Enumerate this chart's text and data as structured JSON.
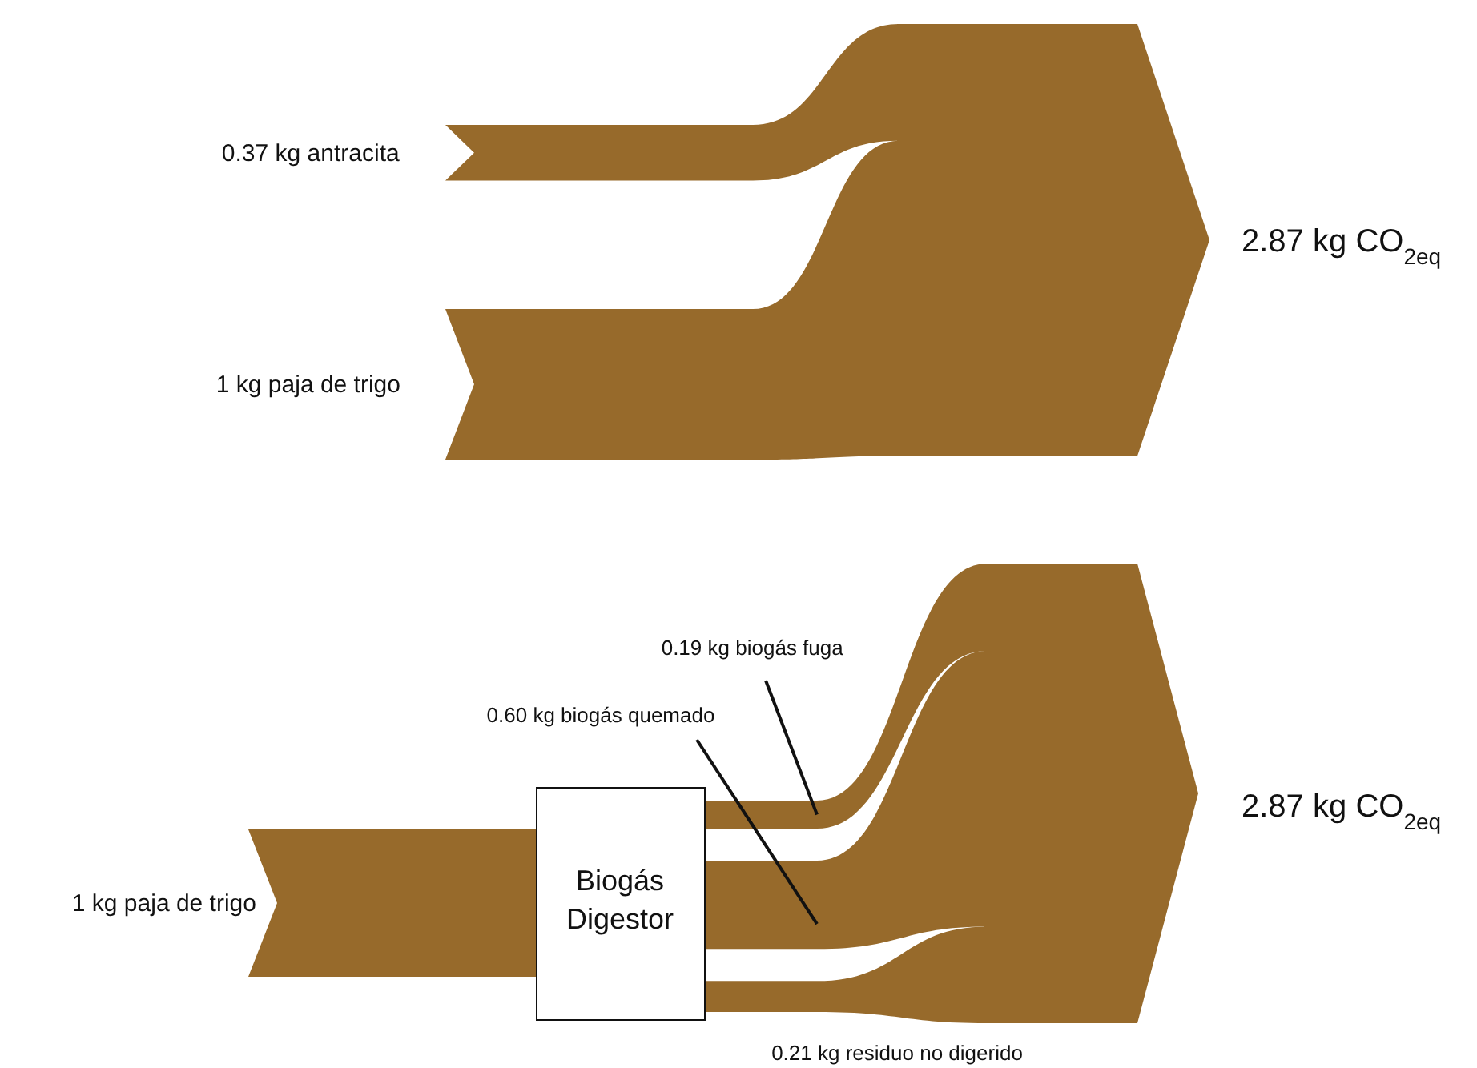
{
  "chart_data": [
    {
      "type": "other",
      "categories": [
        "kg antracita",
        "kg paja de trigo",
        "kg CO$_{2eq}$"
      ],
      "values": [
        0.37,
        1,
        2.87
      ],
      "value_labels": [
        "0.37",
        "1",
        "2.87"
      ],
      "colors": [
        "#976a2b",
        "#976a2b",
        "#976a2b"
      ]
    },
    {
      "type": "other",
      "categories": [
        "kg paja de trigo",
        "kg biogás fuga",
        "kg biogás quemado",
        "kg  residuo no digerido",
        "kg CO$_{2eq}$"
      ],
      "values": [
        1,
        0.19,
        0.6,
        0.21,
        2.87
      ],
      "value_labels": [
        "1",
        "0.19",
        "0.60",
        "0.21",
        "2.87"
      ],
      "colors": [
        "#976a2b",
        "#976a2b",
        "#976a2b",
        "#976a2b",
        "#976a2b"
      ],
      "annotations": [
        "Biogás Digestor"
      ]
    }
  ]
}
